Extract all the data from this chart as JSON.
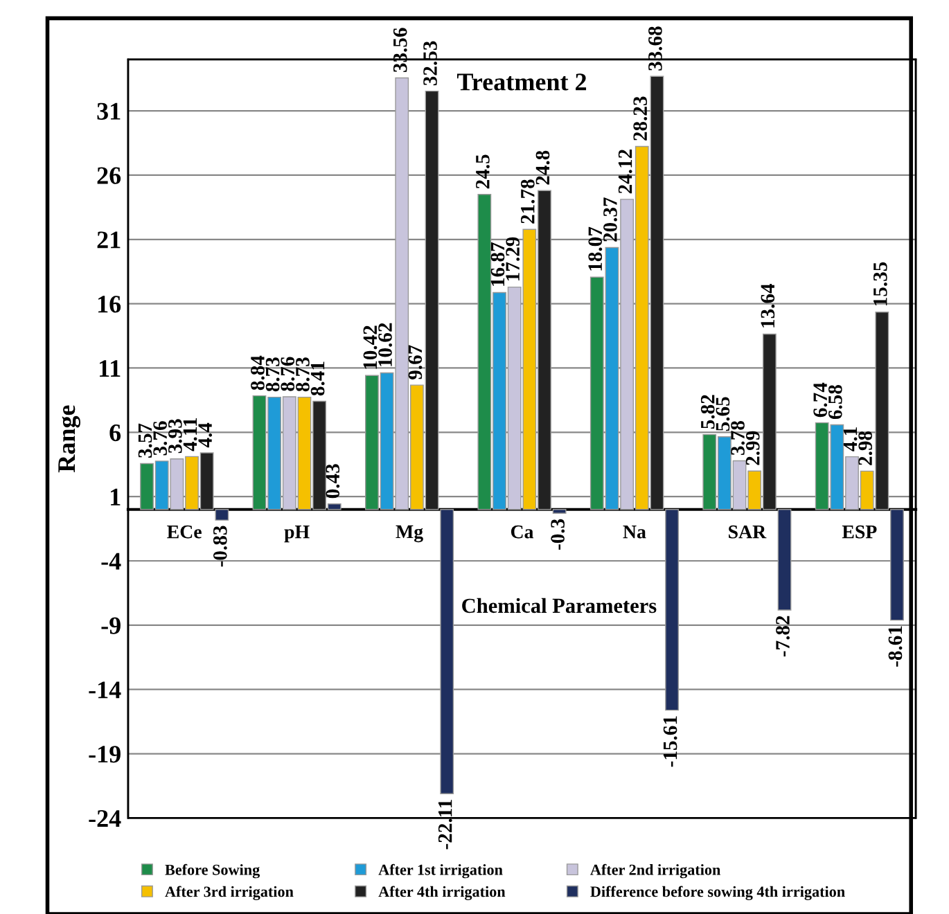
{
  "chart_data": {
    "type": "bar",
    "title": "Treatment 2",
    "xlabel": "Chemical Parameters",
    "ylabel": "Range",
    "categories": [
      "ECe",
      "pH",
      "Mg",
      "Ca",
      "Na",
      "SAR",
      "ESP"
    ],
    "series": [
      {
        "name": "Before Sowing",
        "color": "#1e8c4a",
        "values": [
          3.57,
          8.84,
          10.42,
          24.5,
          18.07,
          5.82,
          6.74
        ]
      },
      {
        "name": "After 1st irrigation",
        "color": "#1f9bd7",
        "values": [
          3.76,
          8.73,
          10.62,
          16.87,
          20.37,
          5.65,
          6.58
        ]
      },
      {
        "name": "After 2nd irrigation",
        "color": "#c8c4dc",
        "values": [
          3.93,
          8.76,
          33.56,
          17.29,
          24.12,
          3.78,
          4.1
        ]
      },
      {
        "name": "After 3rd irrigation",
        "color": "#f5c000",
        "values": [
          4.11,
          8.73,
          9.67,
          21.78,
          28.23,
          2.99,
          2.98
        ]
      },
      {
        "name": "After 4th irrigation",
        "color": "#222222",
        "values": [
          4.4,
          8.41,
          32.53,
          24.8,
          33.68,
          13.64,
          15.35
        ]
      },
      {
        "name": "Difference before sowing 4th irrigation",
        "color": "#1f2f5f",
        "values": [
          -0.83,
          0.43,
          -22.11,
          -0.3,
          -15.61,
          -7.82,
          -8.61
        ]
      }
    ],
    "ylim": [
      -24,
      35
    ],
    "yticks": [
      -24,
      -19,
      -14,
      -9,
      -4,
      1,
      6,
      11,
      16,
      21,
      26,
      31
    ],
    "grid": "y",
    "legend": "bottom",
    "data_labels": true
  }
}
